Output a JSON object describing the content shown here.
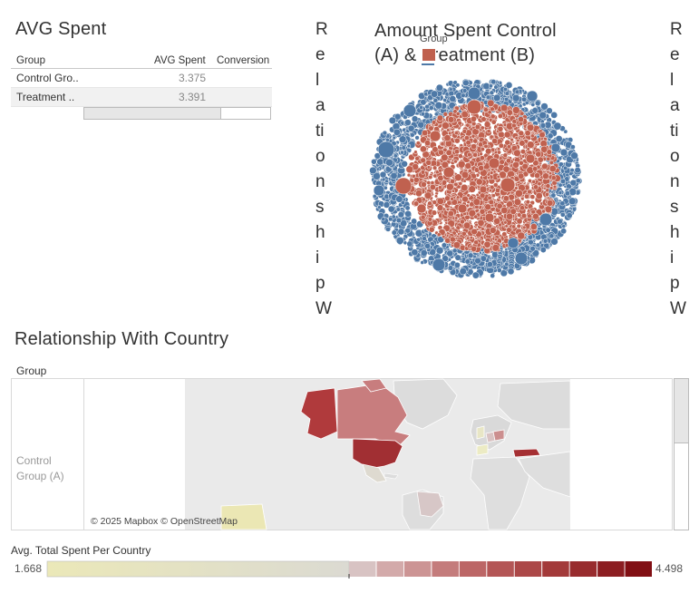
{
  "avg_spent": {
    "title": "AVG Spent",
    "columns": [
      "Group",
      "AVG Spent",
      "Conversion"
    ],
    "rows": [
      {
        "group": "Control Gro..",
        "avg": "3.375"
      },
      {
        "group": "Treatment ..",
        "avg": "3.391"
      }
    ]
  },
  "vertical_label_left": [
    "R",
    "e",
    "l",
    "a",
    "ti",
    "o",
    "n",
    "s",
    "h",
    "i",
    "p",
    "W"
  ],
  "vertical_label_right": [
    "R",
    "e",
    "l",
    "a",
    "ti",
    "o",
    "n",
    "s",
    "h",
    "i",
    "p",
    "W"
  ],
  "bubble": {
    "title_line1": "Amount Spent Control",
    "title_line2": "(A) & Treatment (B)",
    "legend_title": "Group",
    "colors": {
      "control": "#4e79a7",
      "treatment": "#c0614f"
    }
  },
  "country": {
    "title": "Relationship With Country",
    "group_header": "Group",
    "row_label_line1": "Control",
    "row_label_line2": "Group (A)",
    "attribution": "© 2025 Mapbox © OpenStreetMap"
  },
  "legend": {
    "title": "Avg. Total Spent Per Country",
    "min": "1.668",
    "max": "4.498"
  }
}
